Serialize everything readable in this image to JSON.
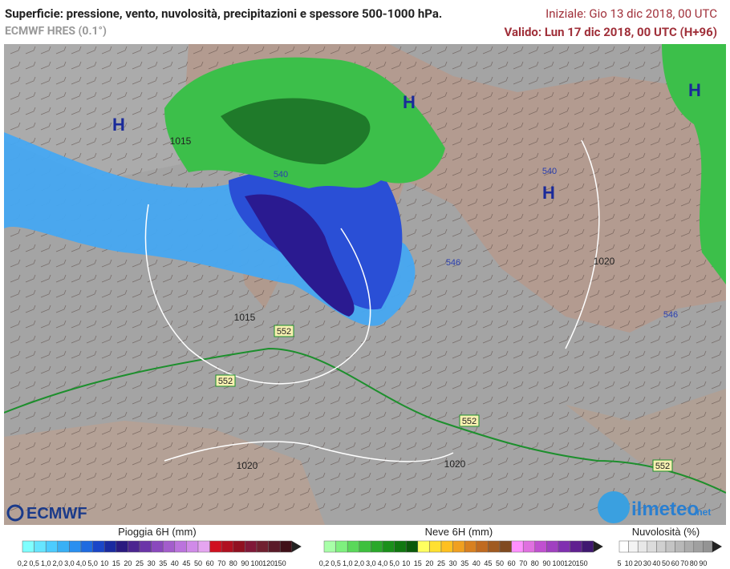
{
  "header": {
    "title": "Superficie: pressione, vento, nuvolosità, precipitazioni e spessore 500-1000 hPa.",
    "subtitle": "ECMWF HRES (0.1°)",
    "init": "Iniziale: Gio 13 dic 2018, 00 UTC",
    "valid": "Valido: Lun 17 dic 2018, 00 UTC (H+96)"
  },
  "map": {
    "highs": [
      "H",
      "H",
      "H",
      "H"
    ],
    "isobars": [
      "1015",
      "1015",
      "1020",
      "1020",
      "1020"
    ],
    "thickness": [
      "552",
      "552",
      "552",
      "552",
      "546",
      "546",
      "540",
      "540"
    ]
  },
  "logos": {
    "ecmwf": "ECMWF",
    "ilmeteo": "ilmeteo",
    "net": ".net"
  },
  "legends": [
    {
      "title": "Pioggia 6H (mm)",
      "steps": [
        "0,2",
        "0,5",
        "1,0",
        "2,0",
        "3,0",
        "4,0",
        "5,0",
        "10",
        "15",
        "20",
        "25",
        "30",
        "35",
        "40",
        "45",
        "50",
        "60",
        "70",
        "80",
        "90",
        "100",
        "120",
        "150"
      ],
      "colors": [
        "#7fffff",
        "#66e5ff",
        "#4cccff",
        "#39b0f5",
        "#2a8ff0",
        "#1f6be0",
        "#1a46c8",
        "#1a2aa0",
        "#2a1a80",
        "#4b2590",
        "#6b35a8",
        "#8a48bd",
        "#a35dcc",
        "#bb73dd",
        "#d08ae8",
        "#e5a5f0",
        "#d01020",
        "#b01020",
        "#901020",
        "#801838",
        "#702030",
        "#5a1a28",
        "#401018"
      ]
    },
    {
      "title": "Neve 6H (mm)",
      "steps": [
        "0,2",
        "0,5",
        "1,0",
        "2,0",
        "3,0",
        "4,0",
        "5,0",
        "10",
        "15",
        "20",
        "25",
        "30",
        "35",
        "40",
        "45",
        "50",
        "60",
        "70",
        "80",
        "90",
        "100",
        "120",
        "150"
      ],
      "colors": [
        "#a8ffa8",
        "#7ff07f",
        "#5ad85a",
        "#3ec03e",
        "#2aa82a",
        "#1a901a",
        "#107810",
        "#0a5a0a",
        "#ffff60",
        "#ffe030",
        "#ffc020",
        "#f0a020",
        "#d88020",
        "#c06a20",
        "#a05a20",
        "#804a20",
        "#ff90ff",
        "#e070e0",
        "#c050d0",
        "#a040c0",
        "#8030b0",
        "#602090",
        "#401870"
      ]
    },
    {
      "title": "Nuvolosità (%)",
      "steps": [
        "5",
        "10",
        "20",
        "30",
        "40",
        "50",
        "60",
        "70",
        "80",
        "90"
      ],
      "colors": [
        "#ffffff",
        "#f4f4f4",
        "#e8e8e8",
        "#dcdcdc",
        "#d0d0d0",
        "#c4c4c4",
        "#b8b8b8",
        "#acacac",
        "#a0a0a0",
        "#949494"
      ]
    }
  ]
}
